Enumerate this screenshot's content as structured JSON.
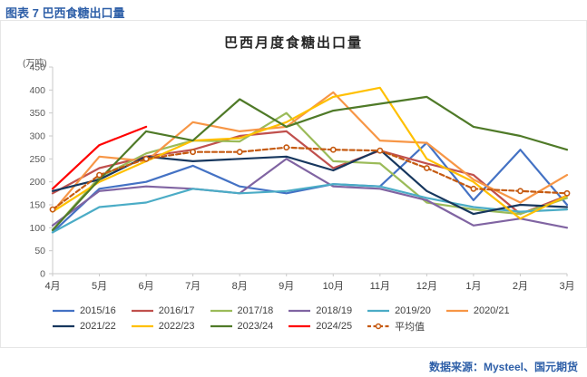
{
  "header": {
    "title": "图表 7  巴西食糖出口量"
  },
  "source": {
    "text": "数据来源：Mysteel、国元期货"
  },
  "chart_data": {
    "type": "line",
    "title": "巴西月度食糖出口量",
    "unit_label": "(万吨)",
    "categories": [
      "4月",
      "5月",
      "6月",
      "7月",
      "8月",
      "9月",
      "10月",
      "11月",
      "12月",
      "1月",
      "2月",
      "3月"
    ],
    "ylim": [
      0,
      450
    ],
    "ytick_step": 50,
    "grid": false,
    "legend_position": "bottom",
    "series": [
      {
        "name": "2015/16",
        "color": "#4472C4",
        "values": [
          90,
          185,
          200,
          235,
          190,
          175,
          195,
          190,
          285,
          160,
          270,
          150
        ]
      },
      {
        "name": "2016/17",
        "color": "#C0504D",
        "values": [
          175,
          230,
          255,
          270,
          300,
          310,
          230,
          268,
          240,
          215,
          130,
          170
        ]
      },
      {
        "name": "2017/18",
        "color": "#9BBB59",
        "values": [
          95,
          210,
          262,
          290,
          288,
          350,
          245,
          240,
          155,
          140,
          130,
          165
        ]
      },
      {
        "name": "2018/19",
        "color": "#8064A2",
        "values": [
          105,
          180,
          190,
          185,
          175,
          250,
          190,
          185,
          160,
          105,
          120,
          100
        ]
      },
      {
        "name": "2019/20",
        "color": "#4BACC6",
        "values": [
          90,
          145,
          155,
          185,
          175,
          180,
          195,
          190,
          165,
          145,
          135,
          140
        ]
      },
      {
        "name": "2020/21",
        "color": "#F79646",
        "values": [
          135,
          255,
          245,
          330,
          310,
          320,
          395,
          290,
          285,
          205,
          155,
          215
        ]
      },
      {
        "name": "2021/22",
        "color": "#17375E",
        "values": [
          180,
          205,
          255,
          245,
          250,
          255,
          225,
          270,
          180,
          130,
          150,
          145
        ]
      },
      {
        "name": "2022/23",
        "color": "#FFC000",
        "values": [
          135,
          200,
          245,
          290,
          295,
          330,
          385,
          405,
          250,
          200,
          120,
          170
        ]
      },
      {
        "name": "2023/24",
        "color": "#4F7A28",
        "values": [
          95,
          205,
          310,
          290,
          380,
          320,
          355,
          370,
          385,
          320,
          300,
          270
        ]
      },
      {
        "name": "2024/25",
        "color": "#FF0000",
        "values": [
          185,
          280,
          320,
          null,
          null,
          null,
          null,
          null,
          null,
          null,
          null,
          null
        ]
      },
      {
        "name": "平均值",
        "color": "#C55A11",
        "dashed": true,
        "marker": true,
        "values": [
          140,
          215,
          250,
          265,
          265,
          275,
          270,
          268,
          230,
          185,
          180,
          175
        ]
      }
    ]
  }
}
